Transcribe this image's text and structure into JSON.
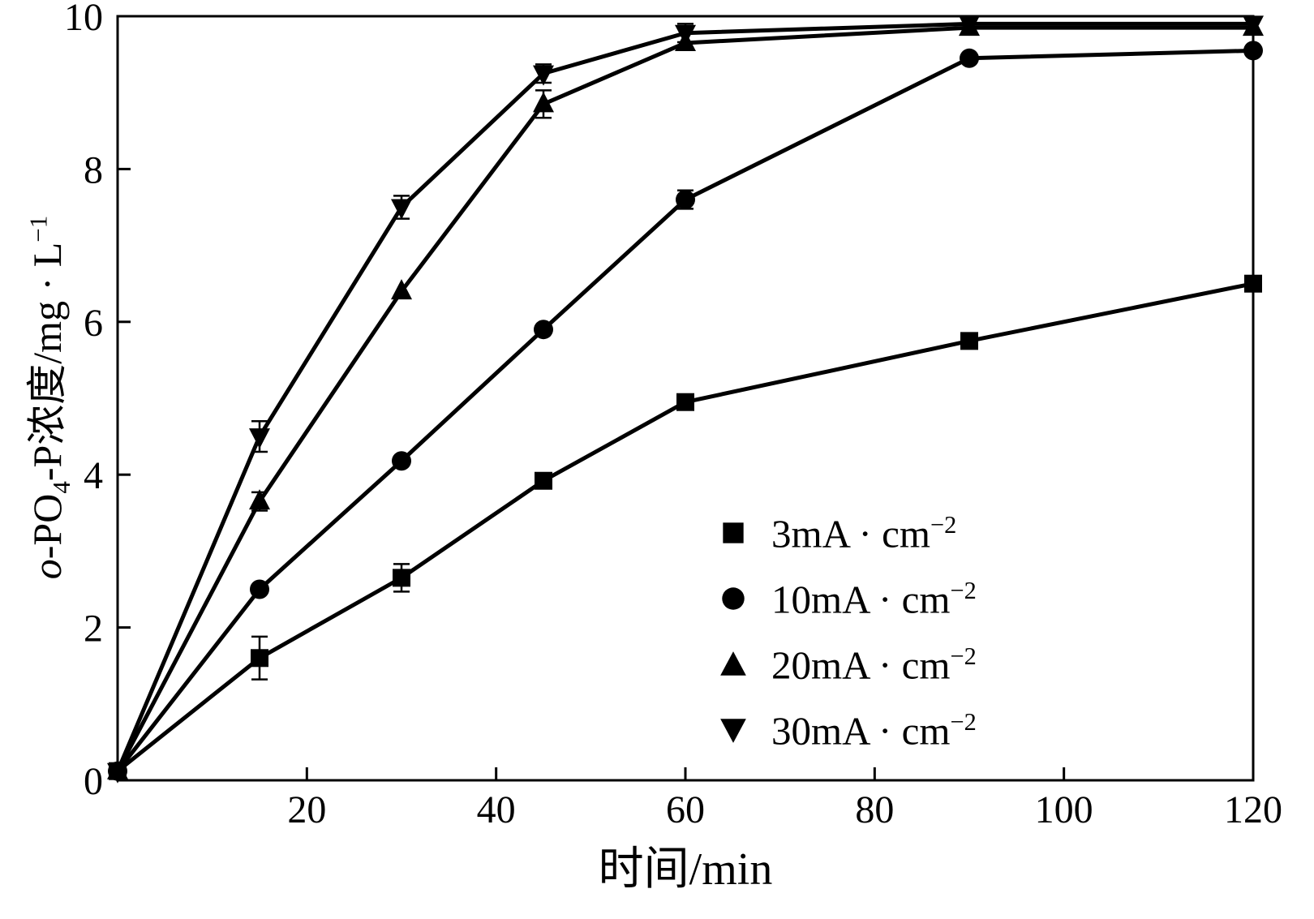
{
  "figure": {
    "background": "#ffffff",
    "ink": "#000000"
  },
  "axes": {
    "x": {
      "label": "时间/min",
      "min": 0,
      "max": 120,
      "ticks": [
        20,
        40,
        60,
        80,
        100,
        120
      ]
    },
    "y": {
      "label_parts": {
        "italic": "o",
        "base1": "-PO",
        "sub": "4",
        "base2": "-P浓度/mg · L",
        "sup": "−1"
      },
      "min": 0,
      "max": 10,
      "ticks": [
        0,
        2,
        4,
        6,
        8,
        10
      ]
    }
  },
  "legend": {
    "items": [
      {
        "marker": "square",
        "base": "3mA · cm",
        "sup": "−2"
      },
      {
        "marker": "circle",
        "base": "10mA · cm",
        "sup": "−2"
      },
      {
        "marker": "triangle-up",
        "base": "20mA · cm",
        "sup": "−2"
      },
      {
        "marker": "triangle-down",
        "base": "30mA · cm",
        "sup": "−2"
      }
    ]
  },
  "chart_data": {
    "type": "line",
    "title": "",
    "xlabel": "时间/min",
    "ylabel": "o-PO₄-P浓度/mg·L⁻¹",
    "xlim": [
      0,
      120
    ],
    "ylim": [
      0,
      10
    ],
    "grid": false,
    "legend_position": "inside lower right",
    "x": [
      0,
      15,
      30,
      45,
      60,
      90,
      120
    ],
    "series": [
      {
        "name": "3mA·cm⁻²",
        "marker": "square",
        "values": [
          0.12,
          1.6,
          2.65,
          3.92,
          4.95,
          5.75,
          6.5
        ],
        "errors": [
          0.03,
          0.28,
          0.18,
          0.08,
          0.06,
          0.06,
          0.06
        ]
      },
      {
        "name": "10mA·cm⁻²",
        "marker": "circle",
        "values": [
          0.12,
          2.5,
          4.18,
          5.9,
          7.6,
          9.45,
          9.55
        ],
        "errors": [
          0.03,
          0.08,
          0.08,
          0.1,
          0.12,
          0.08,
          0.08
        ]
      },
      {
        "name": "20mA·cm⁻²",
        "marker": "triangle-up",
        "values": [
          0.12,
          3.65,
          6.4,
          8.85,
          9.65,
          9.85,
          9.85
        ],
        "errors": [
          0.03,
          0.12,
          0.1,
          0.18,
          0.1,
          0.08,
          0.06
        ]
      },
      {
        "name": "30mA·cm⁻²",
        "marker": "triangle-down",
        "values": [
          0.12,
          4.5,
          7.5,
          9.25,
          9.78,
          9.9,
          9.9
        ],
        "errors": [
          0.03,
          0.2,
          0.15,
          0.12,
          0.12,
          0.08,
          0.06
        ]
      }
    ]
  }
}
